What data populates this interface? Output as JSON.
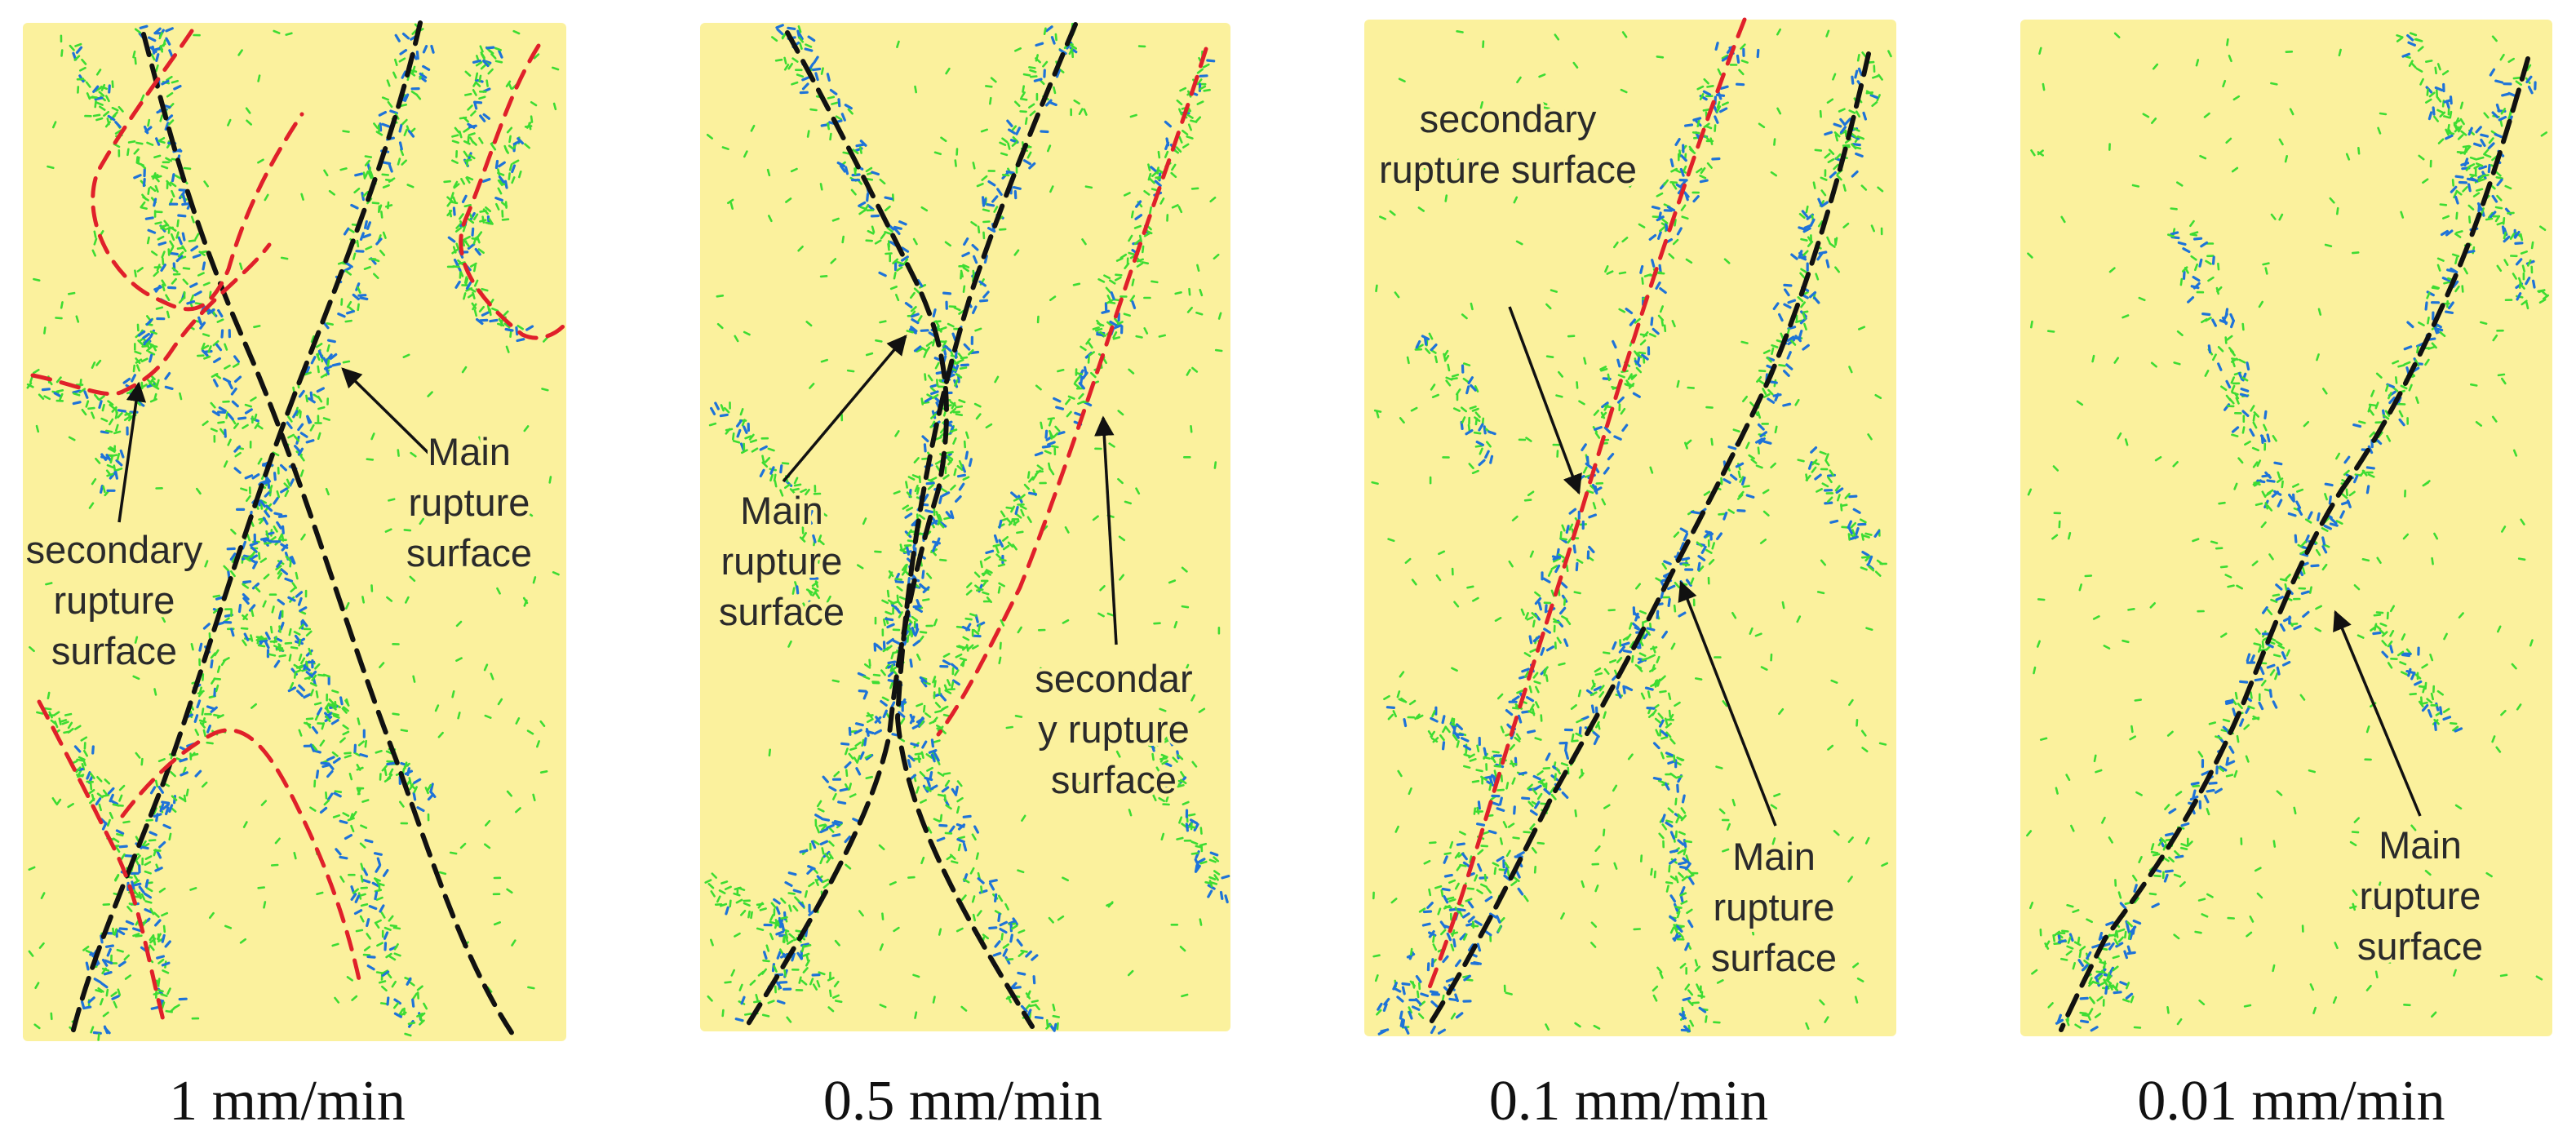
{
  "panels": [
    {
      "caption": "1 mm/min",
      "labels": [
        {
          "lines": [
            "Main",
            "rupture",
            "surface"
          ]
        },
        {
          "lines": [
            "secondary",
            "rupture",
            "surface"
          ]
        }
      ]
    },
    {
      "caption": "0.5 mm/min",
      "labels": [
        {
          "lines": [
            "Main",
            "rupture",
            "surface"
          ]
        },
        {
          "lines": [
            "secondar",
            "y rupture",
            "surface"
          ]
        }
      ]
    },
    {
      "caption": "0.1 mm/min",
      "labels": [
        {
          "lines": [
            "secondary",
            "rupture surface"
          ]
        },
        {
          "lines": [
            "Main",
            "rupture",
            "surface"
          ]
        }
      ]
    },
    {
      "caption": "0.01 mm/min",
      "labels": [
        {
          "lines": [
            "Main",
            "rupture",
            "surface"
          ]
        }
      ]
    }
  ],
  "colors": {
    "specimen": "#fbf19d",
    "tension_crack": "#3ddc32",
    "shear_crack": "#1e73d8",
    "main_rupture": "#111111",
    "secondary_rupture": "#e0202a"
  }
}
